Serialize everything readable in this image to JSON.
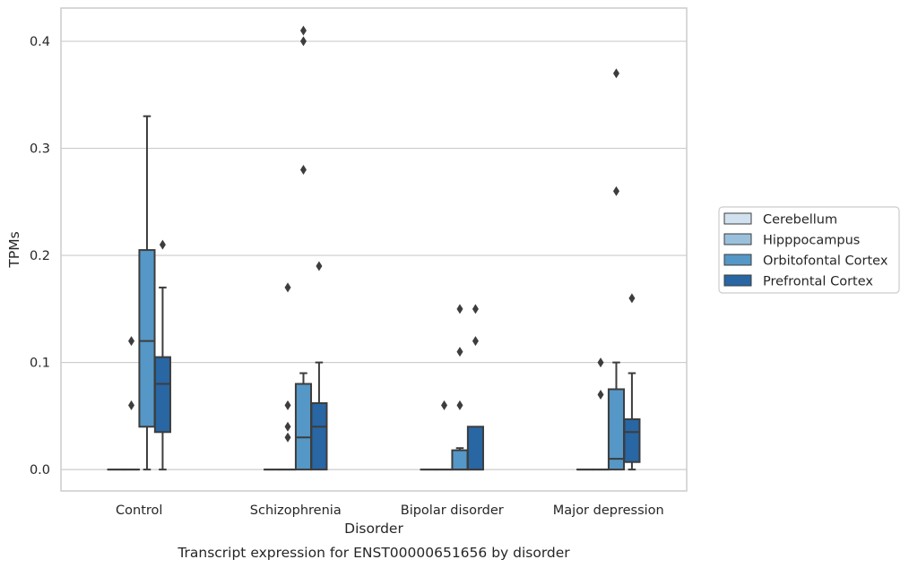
{
  "chart_data": {
    "type": "box",
    "caption": "Transcript expression for ENST00000651656 by disorder",
    "xlabel": "Disorder",
    "ylabel": "TPMs",
    "ylim": [
      -0.02,
      0.431
    ],
    "yticks": [
      "0.0",
      "0.1",
      "0.2",
      "0.3",
      "0.4"
    ],
    "ytick_values": [
      0.0,
      0.1,
      0.2,
      0.3,
      0.4
    ],
    "grid": "horizontal",
    "legend_position": "right",
    "categories": [
      "Control",
      "Schizophrenia",
      "Bipolar disorder",
      "Major depression"
    ],
    "series": [
      {
        "name": "Cerebellum",
        "color": "#d1e1ef",
        "boxes": [
          {
            "min": 0,
            "q1": 0,
            "median": 0,
            "q3": 0,
            "max": 0,
            "outliers": []
          },
          {
            "min": 0,
            "q1": 0,
            "median": 0,
            "q3": 0,
            "max": 0,
            "outliers": []
          },
          {
            "min": 0,
            "q1": 0,
            "median": 0,
            "q3": 0,
            "max": 0,
            "outliers": []
          },
          {
            "min": 0,
            "q1": 0,
            "median": 0,
            "q3": 0,
            "max": 0,
            "outliers": []
          }
        ]
      },
      {
        "name": "Hipppocampus",
        "color": "#9ac0dc",
        "boxes": [
          {
            "min": 0,
            "q1": 0,
            "median": 0,
            "q3": 0,
            "max": 0,
            "outliers": [
              0.12,
              0.06
            ]
          },
          {
            "min": 0,
            "q1": 0,
            "median": 0,
            "q3": 0,
            "max": 0,
            "outliers": [
              0.03,
              0.17,
              0.06,
              0.04
            ]
          },
          {
            "min": 0,
            "q1": 0,
            "median": 0,
            "q3": 0,
            "max": 0,
            "outliers": [
              0.06
            ]
          },
          {
            "min": 0,
            "q1": 0,
            "median": 0,
            "q3": 0,
            "max": 0,
            "outliers": [
              0.1,
              0.07
            ]
          }
        ]
      },
      {
        "name": "Orbitofontal Cortex",
        "color": "#5597c6",
        "boxes": [
          {
            "min": 0,
            "q1": 0.04,
            "median": 0.12,
            "q3": 0.205,
            "max": 0.33,
            "outliers": []
          },
          {
            "min": 0,
            "q1": 0,
            "median": 0.03,
            "q3": 0.08,
            "max": 0.09,
            "outliers": [
              0.41,
              0.4,
              0.28
            ]
          },
          {
            "min": 0,
            "q1": 0,
            "median": 0,
            "q3": 0.018,
            "max": 0.02,
            "outliers": [
              0.15,
              0.11,
              0.06
            ]
          },
          {
            "min": 0,
            "q1": 0,
            "median": 0.01,
            "q3": 0.075,
            "max": 0.1,
            "outliers": [
              0.37,
              0.26
            ]
          }
        ]
      },
      {
        "name": "Prefrontal Cortex",
        "color": "#2866a4",
        "boxes": [
          {
            "min": 0,
            "q1": 0.035,
            "median": 0.08,
            "q3": 0.105,
            "max": 0.17,
            "outliers": [
              0.21
            ]
          },
          {
            "min": 0,
            "q1": 0,
            "median": 0.04,
            "q3": 0.062,
            "max": 0.1,
            "outliers": [
              0.19
            ]
          },
          {
            "min": 0,
            "q1": 0,
            "median": 0,
            "q3": 0.04,
            "max": 0.04,
            "outliers": [
              0.15,
              0.12
            ]
          },
          {
            "min": 0,
            "q1": 0.007,
            "median": 0.035,
            "q3": 0.047,
            "max": 0.09,
            "outliers": [
              0.16
            ]
          }
        ]
      }
    ]
  }
}
